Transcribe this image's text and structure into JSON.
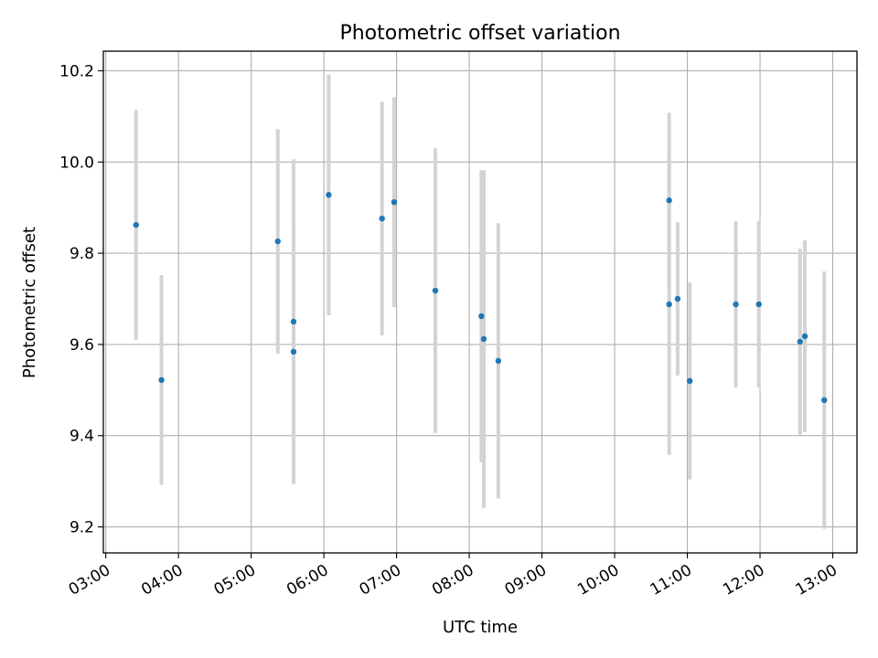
{
  "chart_data": {
    "type": "scatter",
    "title": "Photometric offset variation",
    "xlabel": "UTC time",
    "ylabel": "Photometric offset",
    "x_axis_kind": "time",
    "xlim": [
      "02:58",
      "13:20"
    ],
    "ylim": [
      9.143,
      10.243
    ],
    "x_ticks": [
      "03:00",
      "04:00",
      "05:00",
      "06:00",
      "07:00",
      "08:00",
      "09:00",
      "10:00",
      "11:00",
      "12:00",
      "13:00"
    ],
    "y_ticks": [
      9.2,
      9.4,
      9.6,
      9.8,
      10.0,
      10.2
    ],
    "y_tick_labels": [
      "9.2",
      "9.4",
      "9.6",
      "9.8",
      "10.0",
      "10.2"
    ],
    "grid": true,
    "colors": {
      "point": "#1f77b4",
      "errorbar": "#d3d3d3",
      "grid": "#b0b0b0"
    },
    "series": [
      {
        "points": [
          {
            "x": "03:25",
            "y": 9.862,
            "err": 0.252
          },
          {
            "x": "03:46",
            "y": 9.522,
            "err": 0.23
          },
          {
            "x": "05:22",
            "y": 9.826,
            "err": 0.246
          },
          {
            "x": "05:35",
            "y": 9.65,
            "err": 0.356
          },
          {
            "x": "05:35",
            "y": 9.584,
            "err": 0.29
          },
          {
            "x": "06:04",
            "y": 9.928,
            "err": 0.264
          },
          {
            "x": "06:48",
            "y": 9.876,
            "err": 0.256
          },
          {
            "x": "06:58",
            "y": 9.912,
            "err": 0.23
          },
          {
            "x": "07:32",
            "y": 9.718,
            "err": 0.312
          },
          {
            "x": "08:10",
            "y": 9.662,
            "err": 0.32
          },
          {
            "x": "08:12",
            "y": 9.612,
            "err": 0.37
          },
          {
            "x": "08:24",
            "y": 9.564,
            "err": 0.302
          },
          {
            "x": "10:45",
            "y": 9.916,
            "err": 0.192
          },
          {
            "x": "10:45",
            "y": 9.688,
            "err": 0.33
          },
          {
            "x": "10:52",
            "y": 9.7,
            "err": 0.168
          },
          {
            "x": "11:02",
            "y": 9.52,
            "err": 0.216
          },
          {
            "x": "11:40",
            "y": 9.688,
            "err": 0.182
          },
          {
            "x": "11:59",
            "y": 9.688,
            "err": 0.182
          },
          {
            "x": "12:33",
            "y": 9.606,
            "err": 0.204
          },
          {
            "x": "12:37",
            "y": 9.618,
            "err": 0.21
          },
          {
            "x": "12:53",
            "y": 9.478,
            "err": 0.282
          }
        ]
      }
    ]
  }
}
